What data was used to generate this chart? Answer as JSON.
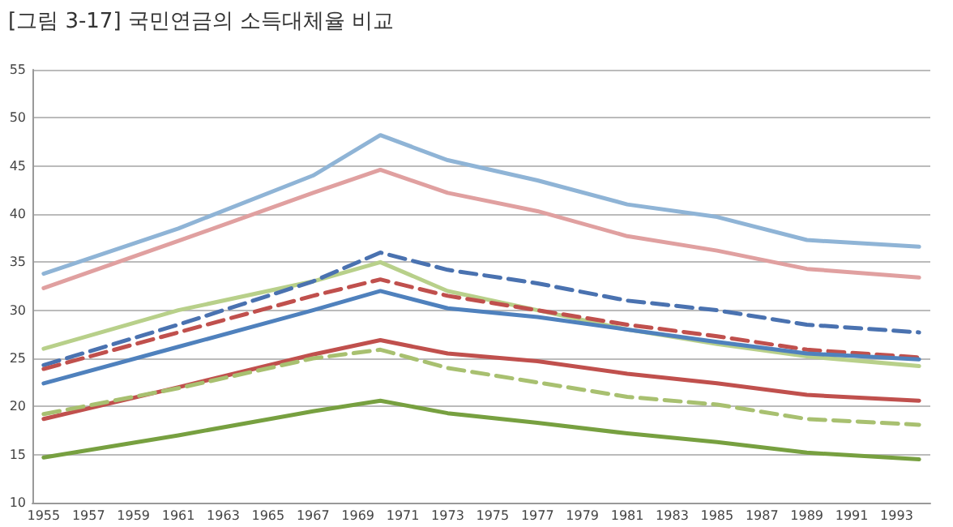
{
  "chart_data": {
    "type": "line",
    "title": "[그림 3-17] 국민연금의 소득대체율 비교",
    "x": [
      1955,
      1961,
      1967,
      1970,
      1973,
      1977,
      1981,
      1985,
      1989,
      1994
    ],
    "xlim": [
      1954.5,
      1994.5
    ],
    "xticks": [
      1955,
      1957,
      1959,
      1961,
      1963,
      1965,
      1967,
      1969,
      1971,
      1973,
      1975,
      1977,
      1979,
      1981,
      1983,
      1985,
      1987,
      1989,
      1991,
      1993
    ],
    "ylim": [
      10,
      55
    ],
    "yticks": [
      10,
      15,
      20,
      25,
      30,
      35,
      40,
      45,
      50,
      55
    ],
    "grid": "y",
    "marker": "none",
    "series": [
      {
        "color": "#8fb4d6",
        "line_style": "solid",
        "values": [
          33.8,
          38.5,
          44,
          48.2,
          45.6,
          43.5,
          41,
          39.7,
          37.3,
          36.6
        ]
      },
      {
        "color": "#e0a0a0",
        "line_style": "solid",
        "values": [
          32.3,
          37.2,
          42.2,
          44.6,
          42.2,
          40.3,
          37.7,
          36.2,
          34.3,
          33.4
        ]
      },
      {
        "color": "#b8d08a",
        "line_style": "solid",
        "values": [
          26,
          30,
          33,
          35,
          32,
          30,
          28,
          26.5,
          25.2,
          24.2
        ]
      },
      {
        "color": "#4a72b0",
        "line_style": "dashed",
        "values": [
          24.3,
          28.5,
          33,
          36,
          34.2,
          32.8,
          31,
          30,
          28.5,
          27.7
        ]
      },
      {
        "color": "#c0504d",
        "line_style": "dashed",
        "values": [
          23.9,
          27.7,
          31.5,
          33.2,
          31.5,
          30,
          28.5,
          27.3,
          25.9,
          25.1
        ]
      },
      {
        "color": "#4f81bd",
        "line_style": "solid",
        "values": [
          22.4,
          26.2,
          30,
          32,
          30.2,
          29.3,
          28,
          26.7,
          25.5,
          24.9
        ]
      },
      {
        "color": "#c0504d",
        "line_style": "solid",
        "values": [
          18.7,
          22,
          25.4,
          26.9,
          25.5,
          24.7,
          23.4,
          22.4,
          21.2,
          20.6
        ]
      },
      {
        "color": "#a8c070",
        "line_style": "dashed",
        "values": [
          19.2,
          21.9,
          25,
          25.9,
          24,
          22.5,
          21,
          20.2,
          18.7,
          18.1
        ]
      },
      {
        "color": "#77a040",
        "line_style": "solid",
        "values": [
          14.7,
          17,
          19.5,
          20.6,
          19.3,
          18.3,
          17.2,
          16.3,
          15.2,
          14.5
        ]
      }
    ]
  }
}
